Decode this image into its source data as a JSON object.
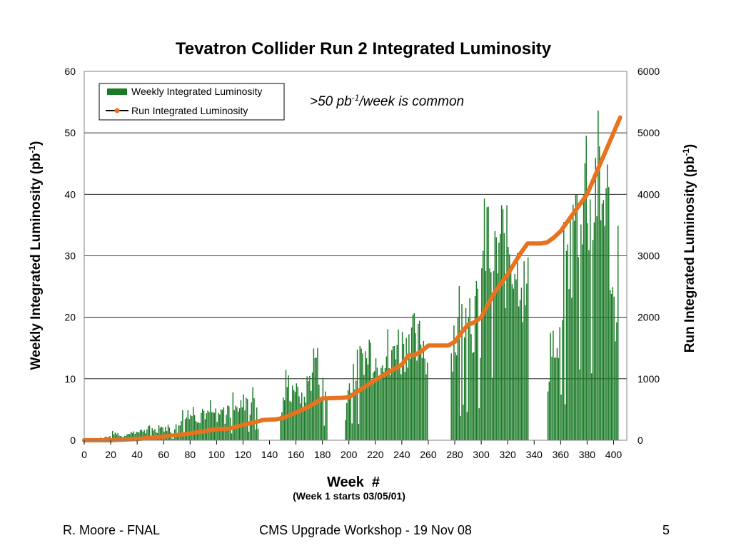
{
  "footer": {
    "author": "R. Moore - FNAL",
    "event": "CMS Upgrade Workshop - 19 Nov 08",
    "page": "5"
  },
  "chart_data": {
    "type": "bar+line",
    "title": "Tevatron Collider Run 2 Integrated Luminosity",
    "xlabel": "Week  #",
    "xlabel_note": "(Week 1 starts 03/05/01)",
    "ylabel_left": "Weekly Integrated Luminosity (pb",
    "ylabel_right": "Run Integrated Luminosity (pb",
    "ylabel_sup": "-1",
    "ylabel_close": ")",
    "xlim": [
      0,
      410
    ],
    "xticks": [
      0,
      20,
      40,
      60,
      80,
      100,
      120,
      140,
      160,
      180,
      200,
      220,
      240,
      260,
      280,
      300,
      320,
      340,
      360,
      380,
      400
    ],
    "ylim_left": [
      0,
      60
    ],
    "yticks_left": [
      0,
      10,
      20,
      30,
      40,
      50,
      60
    ],
    "ylim_right": [
      0,
      6000
    ],
    "yticks_right": [
      0,
      1000,
      2000,
      3000,
      4000,
      5000,
      6000
    ],
    "grid": true,
    "legend_position": "top-left",
    "annotation": {
      "prefix": ">50 pb",
      "sup": "-1",
      "suffix": "/week is common"
    },
    "series": [
      {
        "name": "Weekly Integrated Luminosity",
        "kind": "bar",
        "color": "#1a7a27",
        "segments": [
          {
            "x": [
              10,
              30
            ],
            "peaks": [
              0.3,
              0.6,
              0.4,
              0.8,
              0.5,
              1.0,
              1.7,
              1.2,
              1.4,
              0.9,
              0.6
            ]
          },
          {
            "x": [
              30,
              70
            ],
            "peaks": [
              1.0,
              1.5,
              1.2,
              2.0,
              1.8,
              1.3,
              2.4,
              2.0,
              1.6,
              2.6,
              3.0,
              2.2,
              1.8,
              3.6,
              2.6,
              2.2,
              3.0,
              2.0,
              1.7,
              2.8
            ]
          },
          {
            "x": [
              70,
              100
            ],
            "peaks": [
              3.0,
              4.2,
              5.5,
              4.0,
              6.8,
              5.2,
              6.5,
              5.0,
              4.5,
              6.6,
              5.8,
              4.8,
              7.0,
              5.0,
              6.2
            ]
          },
          {
            "x": [
              100,
              132
            ],
            "peaks": [
              4.0,
              5.0,
              6.5,
              4.5,
              7.0,
              5.5,
              8.5,
              9.0,
              6.0,
              7.5,
              8.0,
              9.5,
              7.0,
              9.0,
              9.6,
              8.0
            ]
          },
          {
            "x": [
              148,
              184
            ],
            "peaks": [
              5.0,
              8.0,
              12.3,
              11.5,
              10.0,
              12.5,
              9.0,
              11.0,
              7.0,
              9.5,
              12.0,
              13.0,
              16.5,
              18.5,
              14.0,
              10.0,
              12.0,
              9.0
            ]
          },
          {
            "x": [
              197,
              250
            ],
            "peaks": [
              5.0,
              10.0,
              14.0,
              15.0,
              13.0,
              17.0,
              16.0,
              19.0,
              16.0,
              20.0,
              17.0,
              19.5,
              15.0,
              18.0,
              20.3,
              17.0,
              19.0,
              14.0,
              18.5,
              22.0,
              20.0,
              18.0,
              21.5,
              19.0,
              23.0,
              24.7,
              21.0
            ]
          },
          {
            "x": [
              250,
              260
            ],
            "peaks": [
              18.0,
              20.0,
              22.0,
              19.0,
              17.5
            ]
          },
          {
            "x": [
              277,
              300
            ],
            "peaks": [
              18.0,
              22.5,
              21.0,
              27.0,
              25.0,
              30.0,
              33.0,
              28.0,
              24.0,
              27.0,
              26.0,
              22.0
            ]
          },
          {
            "x": [
              300,
              336
            ],
            "peaks": [
              36.0,
              40.0,
              44.7,
              38.0,
              42.0,
              36.0,
              39.0,
              42.5,
              40.0,
              37.0,
              43.0,
              38.0,
              41.0,
              35.0,
              39.0,
              33.0,
              30.0,
              31.0
            ]
          },
          {
            "x": [
              350,
              360
            ],
            "peaks": [
              12.0,
              22.0,
              20.0,
              15.0,
              21.0
            ]
          },
          {
            "x": [
              360,
              404
            ],
            "peaks": [
              30.0,
              36.0,
              34.0,
              42.0,
              38.0,
              48.0,
              45.0,
              56.0,
              52.0,
              57.5,
              50.0,
              55.0,
              48.0,
              57.0,
              53.0,
              46.0,
              56.5,
              50.0,
              42.0,
              30.0,
              25.0,
              43.0
            ]
          }
        ]
      },
      {
        "name": "Run Integrated Luminosity",
        "kind": "line",
        "color": "#e8731f",
        "x": [
          0,
          20,
          40,
          60,
          80,
          100,
          110,
          120,
          130,
          135,
          145,
          150,
          160,
          170,
          180,
          195,
          200,
          220,
          240,
          245,
          250,
          255,
          260,
          275,
          280,
          285,
          290,
          295,
          300,
          310,
          320,
          330,
          335,
          345,
          350,
          355,
          360,
          370,
          380,
          390,
          400,
          405
        ],
        "y": [
          0,
          0,
          20,
          60,
          110,
          180,
          190,
          250,
          300,
          330,
          340,
          360,
          450,
          550,
          680,
          690,
          700,
          980,
          1230,
          1380,
          1390,
          1450,
          1540,
          1540,
          1600,
          1750,
          1880,
          1920,
          2000,
          2400,
          2700,
          3050,
          3200,
          3200,
          3220,
          3300,
          3400,
          3700,
          4000,
          4500,
          5000,
          5250
        ]
      }
    ]
  }
}
